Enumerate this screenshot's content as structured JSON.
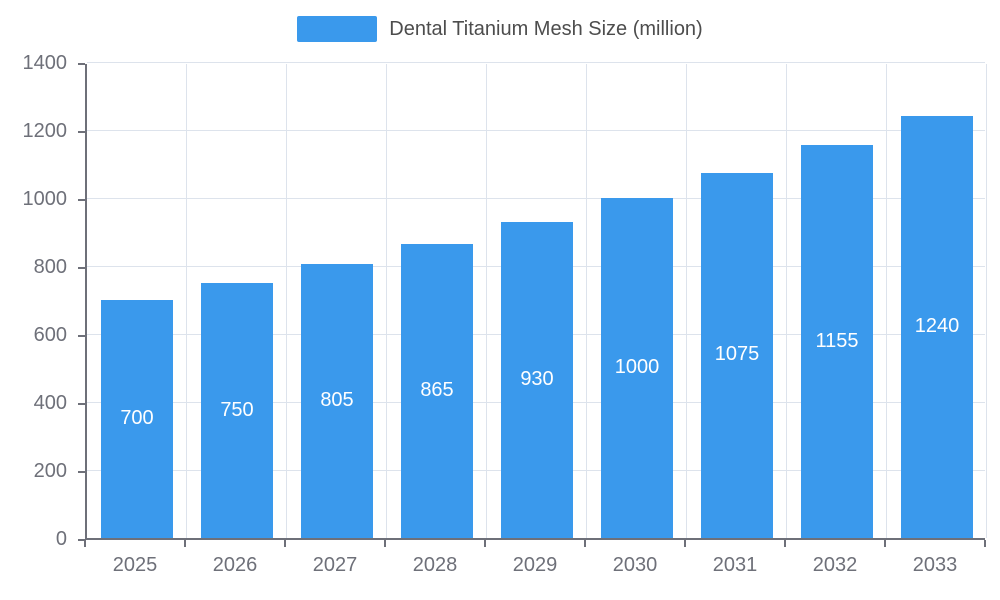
{
  "legend": {
    "label": "Dental Titanium Mesh Size (million)"
  },
  "chart_data": {
    "type": "bar",
    "title": "Dental Titanium Mesh Size (million)",
    "categories": [
      "2025",
      "2026",
      "2027",
      "2028",
      "2029",
      "2030",
      "2031",
      "2032",
      "2033"
    ],
    "values": [
      700,
      750,
      805,
      865,
      930,
      1000,
      1075,
      1155,
      1240
    ],
    "xlabel": "",
    "ylabel": "",
    "ylim": [
      0,
      1400
    ],
    "yticks": [
      0,
      200,
      400,
      600,
      800,
      1000,
      1200,
      1400
    ],
    "grid": true,
    "legend_position": "top-center",
    "bar_color": "#3A99EC",
    "bar_label_color": "#ffffff",
    "axis_color": "#6E7079",
    "gridline_color": "#dde3ec"
  }
}
